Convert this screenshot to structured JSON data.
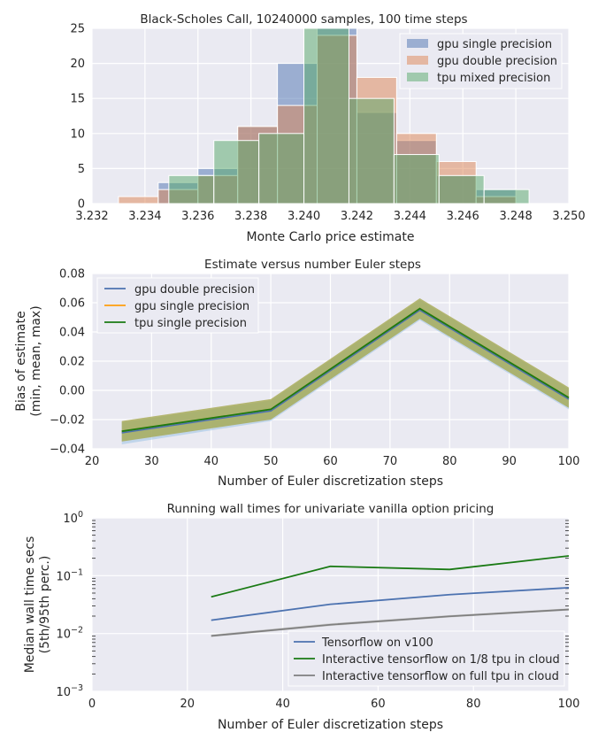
{
  "chart_data": [
    {
      "type": "bar",
      "subtype": "histogram-overlay",
      "title": "Black-Scholes Call, 10240000 samples, 100 time steps",
      "xlabel": "Monte Carlo price estimate",
      "ylabel": "",
      "xlim": [
        3.232,
        3.25
      ],
      "ylim": [
        0,
        25
      ],
      "xticks": [
        "3.232",
        "3.234",
        "3.236",
        "3.238",
        "3.240",
        "3.242",
        "3.244",
        "3.246",
        "3.248",
        "3.250"
      ],
      "xtick_values": [
        3.232,
        3.234,
        3.236,
        3.238,
        3.24,
        3.242,
        3.244,
        3.246,
        3.248,
        3.25
      ],
      "yticks": [
        "0",
        "5",
        "10",
        "15",
        "20",
        "25"
      ],
      "ytick_values": [
        0,
        5,
        10,
        15,
        20,
        25
      ],
      "grid": true,
      "legend": "top-right",
      "series": [
        {
          "name": "gpu single precision",
          "color": "#4c72b0",
          "bins": [
            {
              "x0": 3.2345,
              "x1": 3.236,
              "count": 3
            },
            {
              "x0": 3.236,
              "x1": 3.2375,
              "count": 5
            },
            {
              "x0": 3.2375,
              "x1": 3.239,
              "count": 11
            },
            {
              "x0": 3.239,
              "x1": 3.2405,
              "count": 20
            },
            {
              "x0": 3.2405,
              "x1": 3.242,
              "count": 25
            },
            {
              "x0": 3.242,
              "x1": 3.2435,
              "count": 13
            },
            {
              "x0": 3.2435,
              "x1": 3.245,
              "count": 9
            },
            {
              "x0": 3.245,
              "x1": 3.2465,
              "count": 4
            },
            {
              "x0": 3.2465,
              "x1": 3.248,
              "count": 2
            }
          ]
        },
        {
          "name": "gpu double precision",
          "color": "#dd8452",
          "bins": [
            {
              "x0": 3.233,
              "x1": 3.2345,
              "count": 1
            },
            {
              "x0": 3.2345,
              "x1": 3.236,
              "count": 2
            },
            {
              "x0": 3.236,
              "x1": 3.2375,
              "count": 4
            },
            {
              "x0": 3.2375,
              "x1": 3.239,
              "count": 11
            },
            {
              "x0": 3.239,
              "x1": 3.2405,
              "count": 14
            },
            {
              "x0": 3.2405,
              "x1": 3.242,
              "count": 24
            },
            {
              "x0": 3.242,
              "x1": 3.2435,
              "count": 18
            },
            {
              "x0": 3.2435,
              "x1": 3.245,
              "count": 10
            },
            {
              "x0": 3.245,
              "x1": 3.2465,
              "count": 6
            },
            {
              "x0": 3.2465,
              "x1": 3.248,
              "count": 1
            }
          ]
        },
        {
          "name": "tpu mixed precision",
          "color": "#55a868",
          "bins": [
            {
              "x0": 3.2349,
              "x1": 3.2366,
              "count": 4
            },
            {
              "x0": 3.2366,
              "x1": 3.2383,
              "count": 9
            },
            {
              "x0": 3.2383,
              "x1": 3.24,
              "count": 10
            },
            {
              "x0": 3.24,
              "x1": 3.2417,
              "count": 25
            },
            {
              "x0": 3.2417,
              "x1": 3.2434,
              "count": 15
            },
            {
              "x0": 3.2434,
              "x1": 3.2451,
              "count": 7
            },
            {
              "x0": 3.2451,
              "x1": 3.2468,
              "count": 4
            },
            {
              "x0": 3.2468,
              "x1": 3.2485,
              "count": 2
            }
          ]
        }
      ]
    },
    {
      "type": "line",
      "title": "Estimate versus number Euler steps",
      "xlabel": "Number of Euler discretization steps",
      "ylabel": "Bias of estimate\n(min, mean, max)",
      "ylabel_lines": [
        "Bias of estimate",
        "(min, mean, max)"
      ],
      "xlim": [
        20,
        100
      ],
      "ylim": [
        -0.04,
        0.08
      ],
      "xticks": [
        "20",
        "30",
        "40",
        "50",
        "60",
        "70",
        "80",
        "90",
        "100"
      ],
      "xtick_values": [
        20,
        30,
        40,
        50,
        60,
        70,
        80,
        90,
        100
      ],
      "yticks": [
        "−0.04",
        "−0.02",
        "0.00",
        "0.02",
        "0.04",
        "0.06",
        "0.08"
      ],
      "ytick_values": [
        -0.04,
        -0.02,
        0.0,
        0.02,
        0.04,
        0.06,
        0.08
      ],
      "grid": true,
      "legend": "top-left",
      "x": [
        25,
        50,
        75,
        100
      ],
      "series": [
        {
          "name": "gpu double precision",
          "color": "#4c72b0",
          "band_color": "#9dc3e6",
          "mean": [
            -0.029,
            -0.014,
            0.055,
            -0.006
          ],
          "min": [
            -0.037,
            -0.021,
            0.048,
            -0.013
          ],
          "max": [
            -0.022,
            -0.007,
            0.062,
            0.001
          ]
        },
        {
          "name": "gpu single precision",
          "color": "#ff9f0e",
          "band_color": "#f5c080",
          "mean": [
            -0.028,
            -0.013,
            0.056,
            -0.005
          ],
          "min": [
            -0.035,
            -0.02,
            0.049,
            -0.012
          ],
          "max": [
            -0.021,
            -0.006,
            0.063,
            0.002
          ]
        },
        {
          "name": "tpu single precision",
          "color": "#1a7a14",
          "band_color": "#7f9e3c",
          "mean": [
            -0.028,
            -0.013,
            0.056,
            -0.005
          ],
          "min": [
            -0.035,
            -0.02,
            0.049,
            -0.012
          ],
          "max": [
            -0.021,
            -0.006,
            0.063,
            0.002
          ]
        }
      ]
    },
    {
      "type": "line",
      "yscale": "log",
      "title": "Running wall times for univariate vanilla option pricing",
      "xlabel": "Number of Euler discretization steps",
      "ylabel": "Median wall time secs\n(5th/95th perc.)",
      "ylabel_lines": [
        "Median wall time secs",
        "(5th/95th perc.)"
      ],
      "xlim": [
        0,
        100
      ],
      "ylim": [
        0.001,
        1
      ],
      "xticks": [
        "0",
        "20",
        "40",
        "60",
        "80",
        "100"
      ],
      "xtick_values": [
        0,
        20,
        40,
        60,
        80,
        100
      ],
      "ytick_values": [
        0.001,
        0.01,
        0.1,
        1
      ],
      "yticks_base": [
        "10",
        "10",
        "10",
        "10"
      ],
      "yticks_exp": [
        "−3",
        "−2",
        "−1",
        "0"
      ],
      "grid": true,
      "legend": "bottom-right",
      "x": [
        25,
        50,
        75,
        100
      ],
      "series": [
        {
          "name": "Tensorflow on v100",
          "color": "#4c72b0",
          "values": [
            0.017,
            0.032,
            0.047,
            0.062
          ]
        },
        {
          "name": "Interactive tensorflow on 1/8 tpu in cloud",
          "color": "#1a7a14",
          "values": [
            0.043,
            0.145,
            0.128,
            0.22
          ]
        },
        {
          "name": "Interactive tensorflow on full tpu in cloud",
          "color": "#7f7f7f",
          "band_color": "#c8c8c8",
          "values": [
            0.0091,
            0.0142,
            0.0198,
            0.026
          ],
          "min": [
            0.0087,
            0.0135,
            0.019,
            0.025
          ],
          "max": [
            0.0096,
            0.015,
            0.0208,
            0.0272
          ]
        }
      ]
    }
  ]
}
